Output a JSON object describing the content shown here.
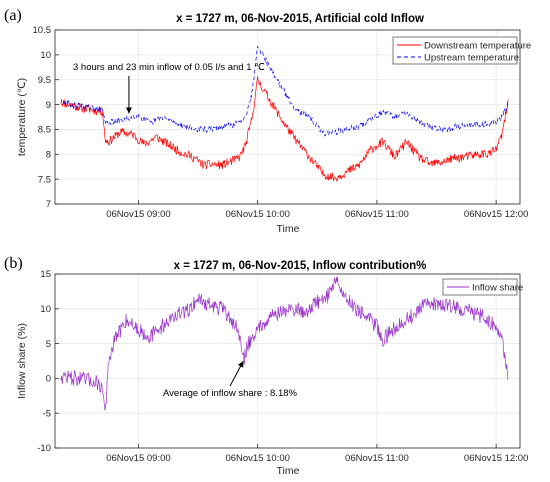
{
  "chart_data": [
    {
      "type": "line",
      "panel_label": "(a)",
      "title": "x = 1727 m, 06-Nov-2015, Artificial cold Inflow",
      "xlabel": "Time",
      "ylabel": "temperature (℃)",
      "x_ticks": [
        "06Nov15 09:00",
        "06Nov15 10:00",
        "06Nov15 11:00",
        "06Nov15 12:00"
      ],
      "xlim_hours": [
        8.3,
        12.2
      ],
      "x_tick_hours": [
        9,
        10,
        11,
        12
      ],
      "ylim": [
        7,
        10.5
      ],
      "y_ticks": [
        "7",
        "7.5",
        "8",
        "8.5",
        "9",
        "9.5",
        "10",
        "10.5"
      ],
      "grid": true,
      "legend_position": "top-right",
      "annotation": "3 hours and 23 min inflow of 0.05 l/s and 1 ℃",
      "annotation_arrow_to": {
        "x": 8.92,
        "y": 8.82
      },
      "series": [
        {
          "name": "Downstream temperature",
          "color": "#ff0000",
          "style": "solid",
          "x": [
            8.35,
            8.45,
            8.55,
            8.65,
            8.7,
            8.72,
            8.75,
            8.85,
            8.95,
            9.05,
            9.15,
            9.25,
            9.35,
            9.45,
            9.55,
            9.6,
            9.7,
            9.8,
            9.85,
            9.9,
            9.95,
            10.0,
            10.1,
            10.2,
            10.3,
            10.45,
            10.55,
            10.65,
            10.75,
            10.85,
            10.95,
            11.05,
            11.15,
            11.25,
            11.35,
            11.45,
            11.55,
            11.65,
            11.75,
            11.85,
            11.95,
            12.0,
            12.05,
            12.1
          ],
          "y": [
            9.05,
            8.98,
            8.92,
            8.88,
            8.86,
            8.3,
            8.25,
            8.45,
            8.4,
            8.2,
            8.35,
            8.2,
            8.05,
            7.95,
            7.78,
            7.8,
            7.78,
            7.88,
            7.95,
            8.2,
            8.7,
            9.5,
            9.1,
            8.7,
            8.35,
            7.9,
            7.6,
            7.52,
            7.65,
            7.78,
            8.1,
            8.25,
            7.95,
            8.25,
            7.95,
            7.8,
            7.85,
            7.92,
            7.95,
            8.0,
            8.02,
            8.1,
            8.4,
            9.05
          ]
        },
        {
          "name": "Upstream temperature",
          "color": "#0000ff",
          "style": "dashed",
          "x": [
            8.35,
            8.45,
            8.55,
            8.65,
            8.7,
            8.72,
            8.8,
            8.9,
            9.0,
            9.1,
            9.2,
            9.3,
            9.4,
            9.5,
            9.6,
            9.7,
            9.8,
            9.85,
            9.9,
            9.95,
            10.0,
            10.1,
            10.2,
            10.3,
            10.45,
            10.55,
            10.65,
            10.75,
            10.85,
            10.95,
            11.05,
            11.15,
            11.25,
            11.35,
            11.45,
            11.55,
            11.65,
            11.75,
            11.85,
            11.95,
            12.0,
            12.05,
            12.1
          ],
          "y": [
            9.05,
            9.0,
            8.95,
            8.92,
            8.9,
            8.65,
            8.65,
            8.72,
            8.78,
            8.62,
            8.75,
            8.65,
            8.55,
            8.5,
            8.5,
            8.55,
            8.6,
            8.65,
            8.8,
            9.2,
            10.2,
            9.75,
            9.35,
            8.95,
            8.7,
            8.42,
            8.45,
            8.5,
            8.55,
            8.72,
            8.85,
            8.75,
            8.85,
            8.65,
            8.55,
            8.5,
            8.55,
            8.58,
            8.6,
            8.62,
            8.65,
            8.75,
            9.0
          ]
        }
      ]
    },
    {
      "type": "line",
      "panel_label": "(b)",
      "title": "x = 1727 m, 06-Nov-2015, Inflow contribution%",
      "xlabel": "Time",
      "ylabel": "Inflow share (%)",
      "x_ticks": [
        "06Nov15 09:00",
        "06Nov15 10:00",
        "06Nov15 11:00",
        "06Nov15 12:00"
      ],
      "xlim_hours": [
        8.3,
        12.2
      ],
      "x_tick_hours": [
        9,
        10,
        11,
        12
      ],
      "ylim": [
        -10,
        15
      ],
      "y_ticks": [
        "-10",
        "-5",
        "0",
        "5",
        "10",
        "15"
      ],
      "grid": true,
      "legend_position": "top-right",
      "annotation": "Average of inflow share : 8.18%",
      "annotation_arrow_to": {
        "x": 9.88,
        "y": 2.5
      },
      "series": [
        {
          "name": "Inflow share",
          "color": "#9932cc",
          "style": "solid",
          "x": [
            8.35,
            8.45,
            8.55,
            8.65,
            8.7,
            8.72,
            8.75,
            8.8,
            8.9,
            9.0,
            9.1,
            9.2,
            9.3,
            9.4,
            9.5,
            9.6,
            9.7,
            9.8,
            9.85,
            9.88,
            9.92,
            10.0,
            10.1,
            10.2,
            10.3,
            10.4,
            10.5,
            10.6,
            10.65,
            10.7,
            10.8,
            10.9,
            11.0,
            11.05,
            11.1,
            11.2,
            11.3,
            11.4,
            11.5,
            11.6,
            11.7,
            11.8,
            11.9,
            12.0,
            12.05,
            12.1
          ],
          "y": [
            0.3,
            0.1,
            -0.2,
            -0.5,
            -1.5,
            -5.0,
            2.0,
            5.5,
            8.5,
            7.0,
            6.0,
            7.5,
            9.0,
            9.5,
            11.5,
            10.5,
            10.0,
            8.0,
            6.0,
            2.5,
            5.0,
            7.0,
            9.0,
            9.5,
            10.0,
            9.5,
            11.0,
            12.0,
            14.5,
            12.5,
            10.5,
            9.0,
            7.5,
            5.5,
            6.5,
            8.0,
            9.0,
            10.5,
            10.8,
            10.5,
            10.0,
            9.5,
            8.8,
            7.5,
            5.5,
            0.5
          ]
        }
      ]
    }
  ]
}
